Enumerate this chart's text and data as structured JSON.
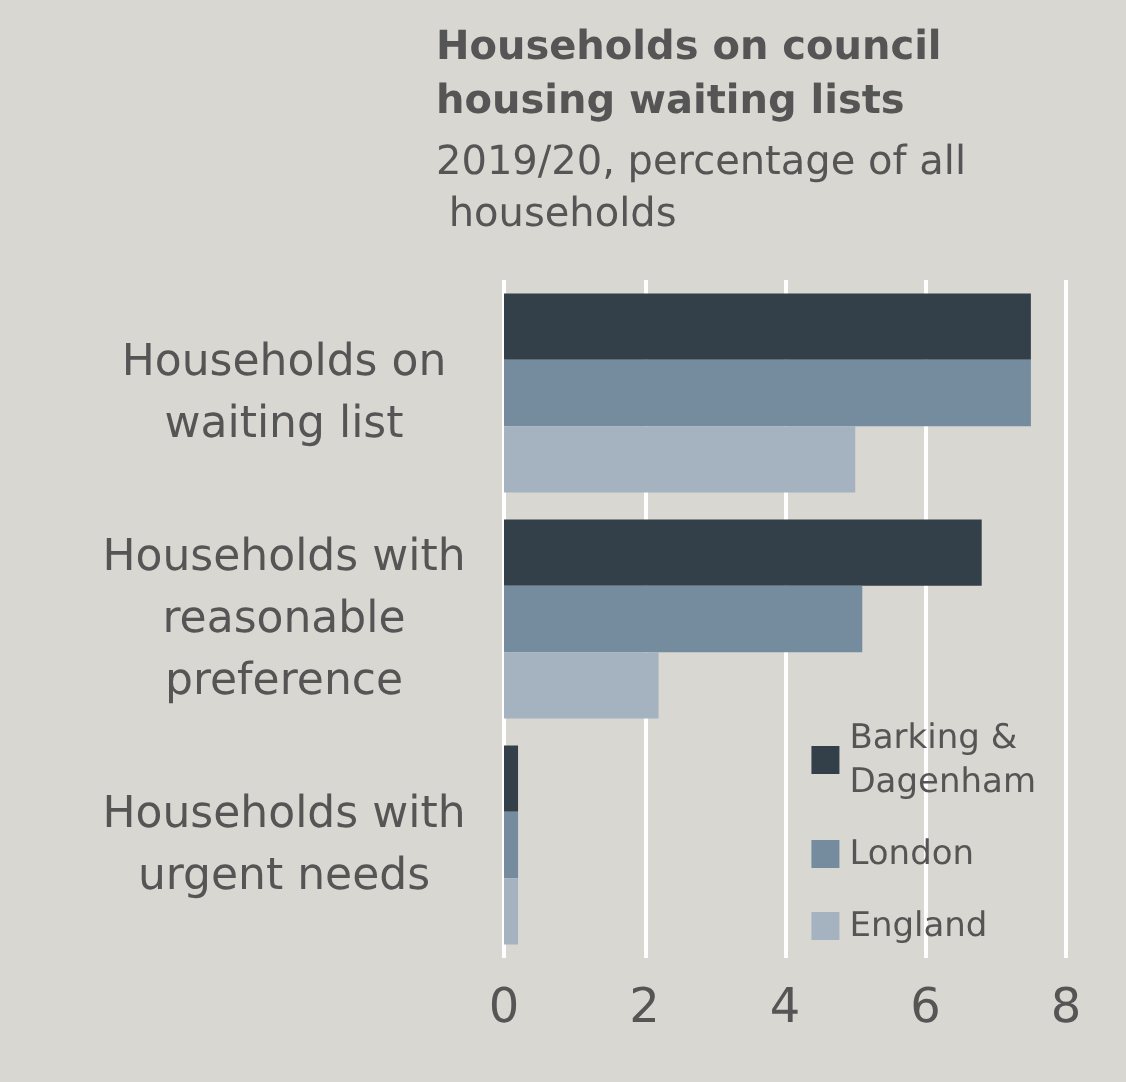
{
  "chart_data": {
    "type": "bar",
    "orientation": "horizontal",
    "title": "Households on council housing waiting lists",
    "subtitle": "2019/20, percentage of all households",
    "categories": [
      "Households on waiting list",
      "Households with reasonable preference",
      "Households with urgent needs"
    ],
    "series": [
      {
        "name": "Barking & Dagenham",
        "color": "#333f49",
        "values": [
          7.5,
          6.8,
          0.2
        ]
      },
      {
        "name": "London",
        "color": "#758b9e",
        "values": [
          7.5,
          5.1,
          0.2
        ]
      },
      {
        "name": "England",
        "color": "#a4b3bf",
        "values": [
          5.0,
          2.2,
          0.2
        ]
      }
    ],
    "xlim": [
      0,
      8
    ],
    "xticks": [
      0,
      2,
      4,
      6,
      8
    ],
    "grid": "x",
    "legend": "bottom right"
  }
}
